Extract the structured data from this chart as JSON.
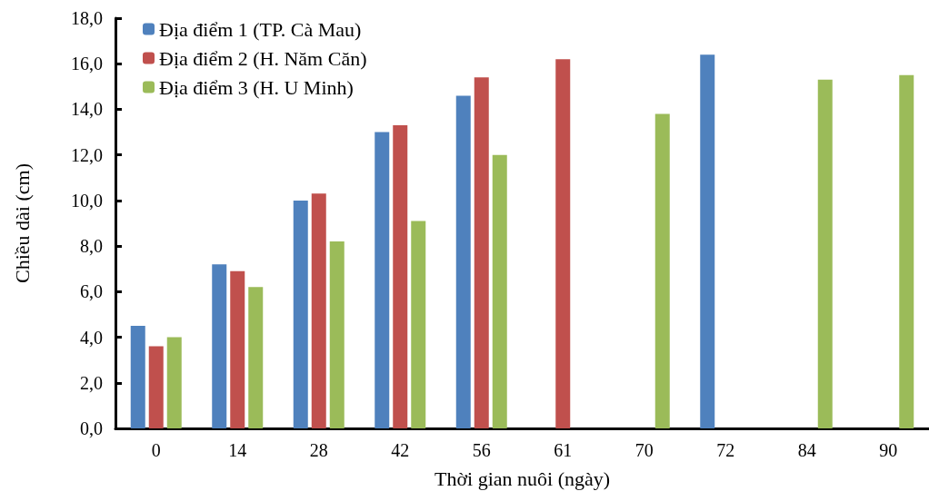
{
  "chart_data": {
    "type": "bar",
    "xlabel": "Thời gian nuôi (ngày)",
    "ylabel": "Chiều dài (cm)",
    "categories": [
      "0",
      "14",
      "28",
      "42",
      "56",
      "61",
      "70",
      "72",
      "84",
      "90"
    ],
    "series": [
      {
        "name": "Địa điểm 1 (TP. Cà Mau)",
        "color": "#4f81bd",
        "values": [
          4.5,
          7.2,
          10.0,
          13.0,
          14.6,
          null,
          null,
          16.4,
          null,
          null
        ]
      },
      {
        "name": "Địa điểm 2 (H. Năm Căn)",
        "color": "#c0504d",
        "values": [
          3.6,
          6.9,
          10.3,
          13.3,
          15.4,
          16.2,
          null,
          null,
          null,
          null
        ]
      },
      {
        "name": "Địa điểm 3 (H. U Minh)",
        "color": "#9bbb59",
        "values": [
          4.0,
          6.2,
          8.2,
          9.1,
          12.0,
          null,
          13.8,
          null,
          15.3,
          15.5
        ]
      }
    ],
    "ylim": [
      0,
      18
    ],
    "yticks": [
      {
        "value": 0,
        "label": "0,0"
      },
      {
        "value": 2,
        "label": "2,0"
      },
      {
        "value": 4,
        "label": "4,0"
      },
      {
        "value": 6,
        "label": "6,0"
      },
      {
        "value": 8,
        "label": "8,0"
      },
      {
        "value": 10,
        "label": "10,0"
      },
      {
        "value": 12,
        "label": "12,0"
      },
      {
        "value": 14,
        "label": "14,0"
      },
      {
        "value": 16,
        "label": "16,0"
      },
      {
        "value": 18,
        "label": "18,0"
      }
    ],
    "grid": false,
    "legend": "top left"
  }
}
